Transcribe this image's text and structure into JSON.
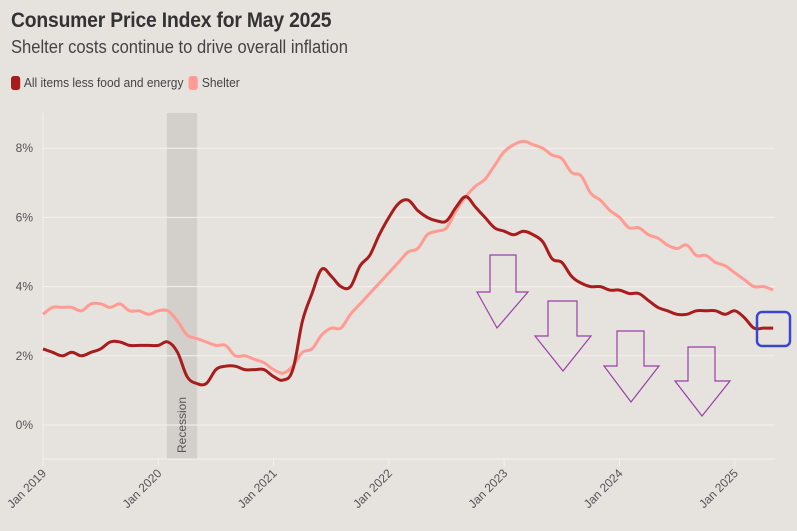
{
  "chart_data": {
    "type": "line",
    "title": "Consumer Price Index for May 2025",
    "subtitle": "Shelter costs continue to drive overall inflation",
    "xlabel": "",
    "ylabel": "",
    "x_start": "2019-01",
    "x_end": "2025-05",
    "x_ticks": [
      "Jan 2019",
      "Jan 2020",
      "Jan 2021",
      "Jan 2022",
      "Jan 2023",
      "Jan 2024",
      "Jan 2025"
    ],
    "y_ticks": [
      "0%",
      "2%",
      "4%",
      "6%",
      "8%"
    ],
    "y_tick_values": [
      0,
      2,
      4,
      6,
      8
    ],
    "ylim": [
      -1,
      9
    ],
    "grid": true,
    "legend_position": "top-left",
    "recession": {
      "label": "Recession",
      "start": "2020-02",
      "end": "2020-04"
    },
    "series": [
      {
        "name": "All items less food and energy",
        "color": "#a81c1c",
        "values": [
          2.2,
          2.1,
          2.0,
          2.1,
          2.0,
          2.1,
          2.2,
          2.4,
          2.4,
          2.3,
          2.3,
          2.3,
          2.3,
          2.4,
          2.1,
          1.4,
          1.2,
          1.2,
          1.6,
          1.7,
          1.7,
          1.6,
          1.6,
          1.6,
          1.4,
          1.3,
          1.6,
          3.0,
          3.8,
          4.5,
          4.3,
          4.0,
          4.0,
          4.6,
          4.9,
          5.5,
          6.0,
          6.4,
          6.5,
          6.2,
          6.0,
          5.9,
          5.9,
          6.3,
          6.6,
          6.3,
          6.0,
          5.7,
          5.6,
          5.5,
          5.6,
          5.5,
          5.3,
          4.8,
          4.7,
          4.3,
          4.1,
          4.0,
          4.0,
          3.9,
          3.9,
          3.8,
          3.8,
          3.6,
          3.4,
          3.3,
          3.2,
          3.2,
          3.3,
          3.3,
          3.3,
          3.2,
          3.3,
          3.1,
          2.8,
          2.8,
          2.8
        ]
      },
      {
        "name": "Shelter",
        "color": "#ff9b93",
        "values": [
          3.2,
          3.4,
          3.4,
          3.4,
          3.3,
          3.5,
          3.5,
          3.4,
          3.5,
          3.3,
          3.3,
          3.2,
          3.3,
          3.3,
          3.0,
          2.6,
          2.5,
          2.4,
          2.3,
          2.3,
          2.0,
          2.0,
          1.9,
          1.8,
          1.6,
          1.5,
          1.7,
          2.1,
          2.2,
          2.6,
          2.8,
          2.8,
          3.2,
          3.5,
          3.8,
          4.1,
          4.4,
          4.7,
          5.0,
          5.1,
          5.5,
          5.6,
          5.7,
          6.2,
          6.6,
          6.9,
          7.1,
          7.5,
          7.9,
          8.1,
          8.2,
          8.1,
          8.0,
          7.8,
          7.7,
          7.3,
          7.2,
          6.7,
          6.5,
          6.2,
          6.0,
          5.7,
          5.7,
          5.5,
          5.4,
          5.2,
          5.1,
          5.2,
          4.9,
          4.9,
          4.7,
          4.6,
          4.4,
          4.2,
          4.0,
          4.0,
          3.9
        ]
      }
    ],
    "annotations": [
      {
        "type": "down-arrow",
        "color": "#9b3fa8",
        "count": 4
      },
      {
        "type": "highlight-box",
        "color": "#3a46d0",
        "target": "All items less food and energy latest value (May 2025)"
      }
    ]
  },
  "header": {
    "title": "Consumer Price Index for May 2025",
    "subtitle": "Shelter costs continue to drive overall inflation"
  },
  "legend": [
    {
      "label": "All items less food and energy",
      "color": "#a81c1c"
    },
    {
      "label": "Shelter",
      "color": "#ff9b93"
    }
  ]
}
